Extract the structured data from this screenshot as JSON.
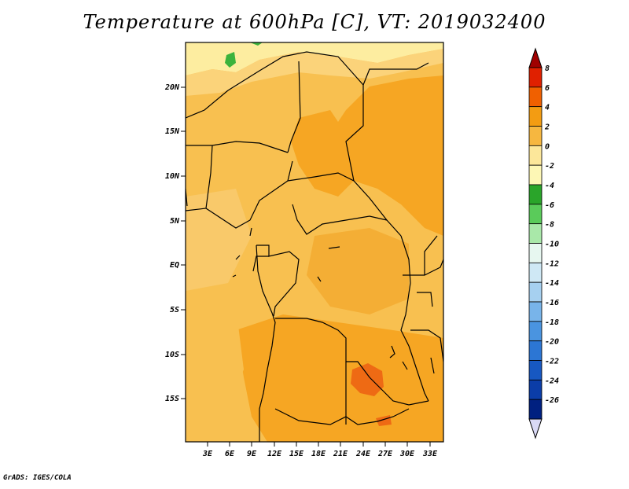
{
  "title": "Temperature at 600hPa [C], VT: 2019032400",
  "footer": "GrADS: IGES/COLA",
  "lat_labels": [
    "20N",
    "15N",
    "10N",
    "5N",
    "EQ",
    "5S",
    "10S",
    "15S"
  ],
  "lon_labels": [
    "3E",
    "6E",
    "9E",
    "12E",
    "15E",
    "18E",
    "21E",
    "24E",
    "27E",
    "30E",
    "33E"
  ],
  "colorbar": {
    "labels": [
      "8",
      "6",
      "4",
      "2",
      "0",
      "-2",
      "-4",
      "-6",
      "-8",
      "-10",
      "-12",
      "-14",
      "-16",
      "-18",
      "-20",
      "-22",
      "-24",
      "-26"
    ],
    "colors": [
      "#a00000",
      "#e02000",
      "#f06000",
      "#f39c12",
      "#f6b740",
      "#fce79a",
      "#fdf7b5",
      "#2aa52a",
      "#5acb5a",
      "#a9e8a9",
      "#e7f7f0",
      "#cfe8f5",
      "#a6d0f0",
      "#78b4ea",
      "#4a94e0",
      "#2c76d4",
      "#1758c2",
      "#0b3da8",
      "#002080",
      "#d9d9f5"
    ]
  },
  "map_colors": {
    "light_yellow": "#fdeda0",
    "pale_orange": "#fbd37a",
    "light_orange": "#f8c050",
    "orange": "#f6a623",
    "deep_orange": "#f29a0e",
    "red_orange": "#ee6a14",
    "green": "#3cb33c",
    "border": "#000000"
  }
}
